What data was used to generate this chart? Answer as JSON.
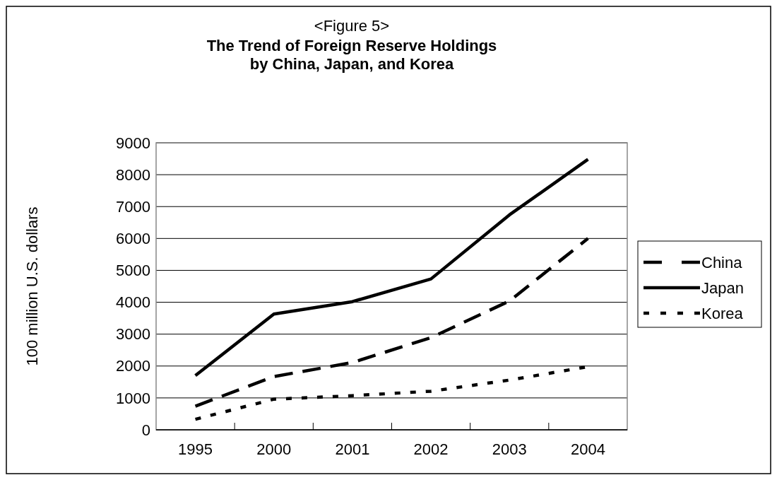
{
  "chart_data": {
    "type": "line",
    "title": "<Figure 5>",
    "subtitle": "The Trend of Foreign Reserve Holdings\nby China, Japan, and Korea",
    "ylabel": "100 million U.S. dollars",
    "categories": [
      "1995",
      "2000",
      "2001",
      "2002",
      "2003",
      "2004"
    ],
    "series": [
      {
        "name": "China",
        "color": "#000000",
        "line_style": "dashed",
        "values": [
          740,
          1670,
          2110,
          2890,
          4040,
          6000
        ]
      },
      {
        "name": "Japan",
        "color": "#000000",
        "line_style": "solid",
        "values": [
          1700,
          3630,
          4020,
          4730,
          6740,
          8480
        ]
      },
      {
        "name": "Korea",
        "color": "#000000",
        "line_style": "dotted",
        "values": [
          330,
          960,
          1070,
          1210,
          1560,
          1980
        ]
      }
    ],
    "ylim": [
      0,
      9000
    ],
    "yticks": [
      0,
      1000,
      2000,
      3000,
      4000,
      5000,
      6000,
      7000,
      8000,
      9000
    ],
    "grid": "y",
    "legend": "right",
    "marker": "none"
  }
}
